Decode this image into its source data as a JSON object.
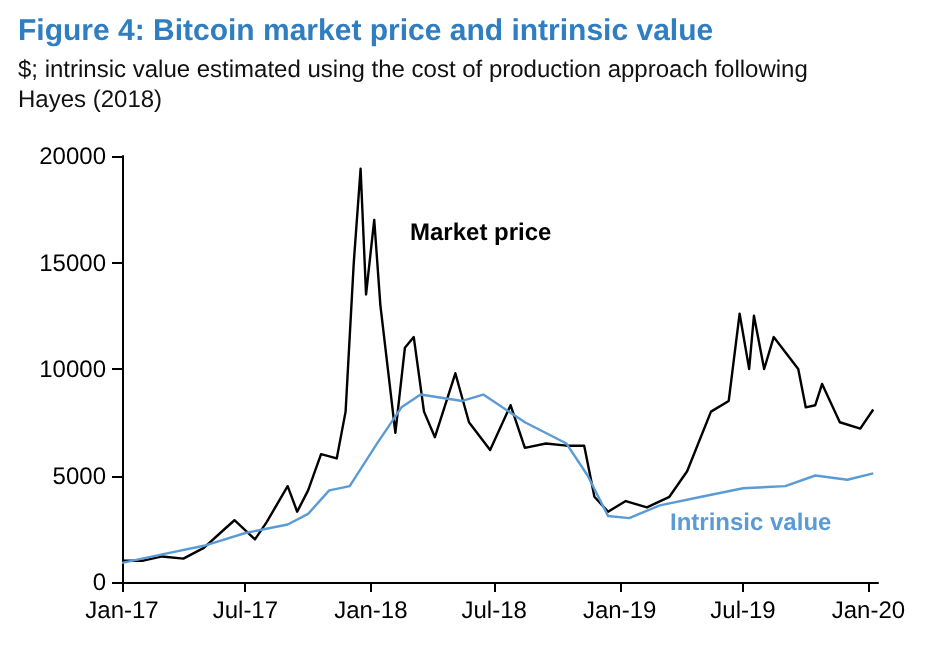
{
  "chart_data": {
    "type": "line",
    "title": "Figure 4: Bitcoin market price and intrinsic value",
    "subtitle": "$; intrinsic value estimated using the cost of production approach following Hayes (2018)",
    "xlim": [
      "2017-01-01",
      "2020-01-15"
    ],
    "xticks": [
      {
        "value": "2017-01-01",
        "label": "Jan-17"
      },
      {
        "value": "2017-07-01",
        "label": "Jul-17"
      },
      {
        "value": "2018-01-01",
        "label": "Jan-18"
      },
      {
        "value": "2018-07-01",
        "label": "Jul-18"
      },
      {
        "value": "2019-01-01",
        "label": "Jan-19"
      },
      {
        "value": "2019-07-01",
        "label": "Jul-19"
      },
      {
        "value": "2020-01-01",
        "label": "Jan-20"
      }
    ],
    "ylim": [
      0,
      20000
    ],
    "yticks": [
      0,
      5000,
      10000,
      15000,
      20000
    ],
    "grid": false,
    "legend": false,
    "marker": "none",
    "line_style": "solid",
    "series": [
      {
        "name": "Market price",
        "color": "#000000",
        "x": [
          "2017-01-01",
          "2017-02-01",
          "2017-03-01",
          "2017-04-01",
          "2017-05-01",
          "2017-06-01",
          "2017-06-15",
          "2017-07-15",
          "2017-08-01",
          "2017-09-01",
          "2017-09-15",
          "2017-10-01",
          "2017-10-20",
          "2017-11-12",
          "2017-11-25",
          "2017-12-07",
          "2017-12-17",
          "2017-12-25",
          "2018-01-06",
          "2018-01-15",
          "2018-02-06",
          "2018-02-20",
          "2018-03-05",
          "2018-03-20",
          "2018-04-05",
          "2018-05-05",
          "2018-05-25",
          "2018-06-25",
          "2018-07-25",
          "2018-08-15",
          "2018-09-15",
          "2018-10-15",
          "2018-11-10",
          "2018-11-25",
          "2018-12-15",
          "2019-01-10",
          "2019-02-10",
          "2019-03-15",
          "2019-04-10",
          "2019-05-15",
          "2019-06-10",
          "2019-06-26",
          "2019-07-10",
          "2019-07-17",
          "2019-08-01",
          "2019-08-15",
          "2019-09-20",
          "2019-10-01",
          "2019-10-15",
          "2019-10-25",
          "2019-11-20",
          "2019-12-20",
          "2020-01-08"
        ],
        "values": [
          1000,
          1000,
          1200,
          1100,
          1600,
          2500,
          2900,
          2000,
          2800,
          4500,
          3300,
          4300,
          6000,
          5800,
          8000,
          15000,
          19400,
          13500,
          17000,
          13000,
          7000,
          11000,
          11500,
          8000,
          6800,
          9800,
          7500,
          6200,
          8300,
          6300,
          6500,
          6400,
          6400,
          4000,
          3300,
          3800,
          3500,
          4000,
          5200,
          8000,
          8500,
          12600,
          10000,
          12500,
          10000,
          11500,
          10000,
          8200,
          8300,
          9300,
          7500,
          7200,
          8100
        ]
      },
      {
        "name": "Intrinsic value",
        "color": "#5b9bd5",
        "x": [
          "2017-01-01",
          "2017-03-01",
          "2017-05-01",
          "2017-07-01",
          "2017-09-01",
          "2017-10-01",
          "2017-11-01",
          "2017-12-01",
          "2018-01-10",
          "2018-02-15",
          "2018-03-15",
          "2018-05-15",
          "2018-06-15",
          "2018-08-15",
          "2018-10-15",
          "2018-11-15",
          "2018-12-15",
          "2019-01-15",
          "2019-03-01",
          "2019-05-01",
          "2019-07-01",
          "2019-09-01",
          "2019-10-15",
          "2019-12-01",
          "2020-01-08"
        ],
        "values": [
          900,
          1300,
          1700,
          2300,
          2700,
          3200,
          4300,
          4500,
          6500,
          8200,
          8800,
          8500,
          8800,
          7500,
          6500,
          5000,
          3100,
          3000,
          3600,
          4000,
          4400,
          4500,
          5000,
          4800,
          5100
        ]
      }
    ]
  }
}
